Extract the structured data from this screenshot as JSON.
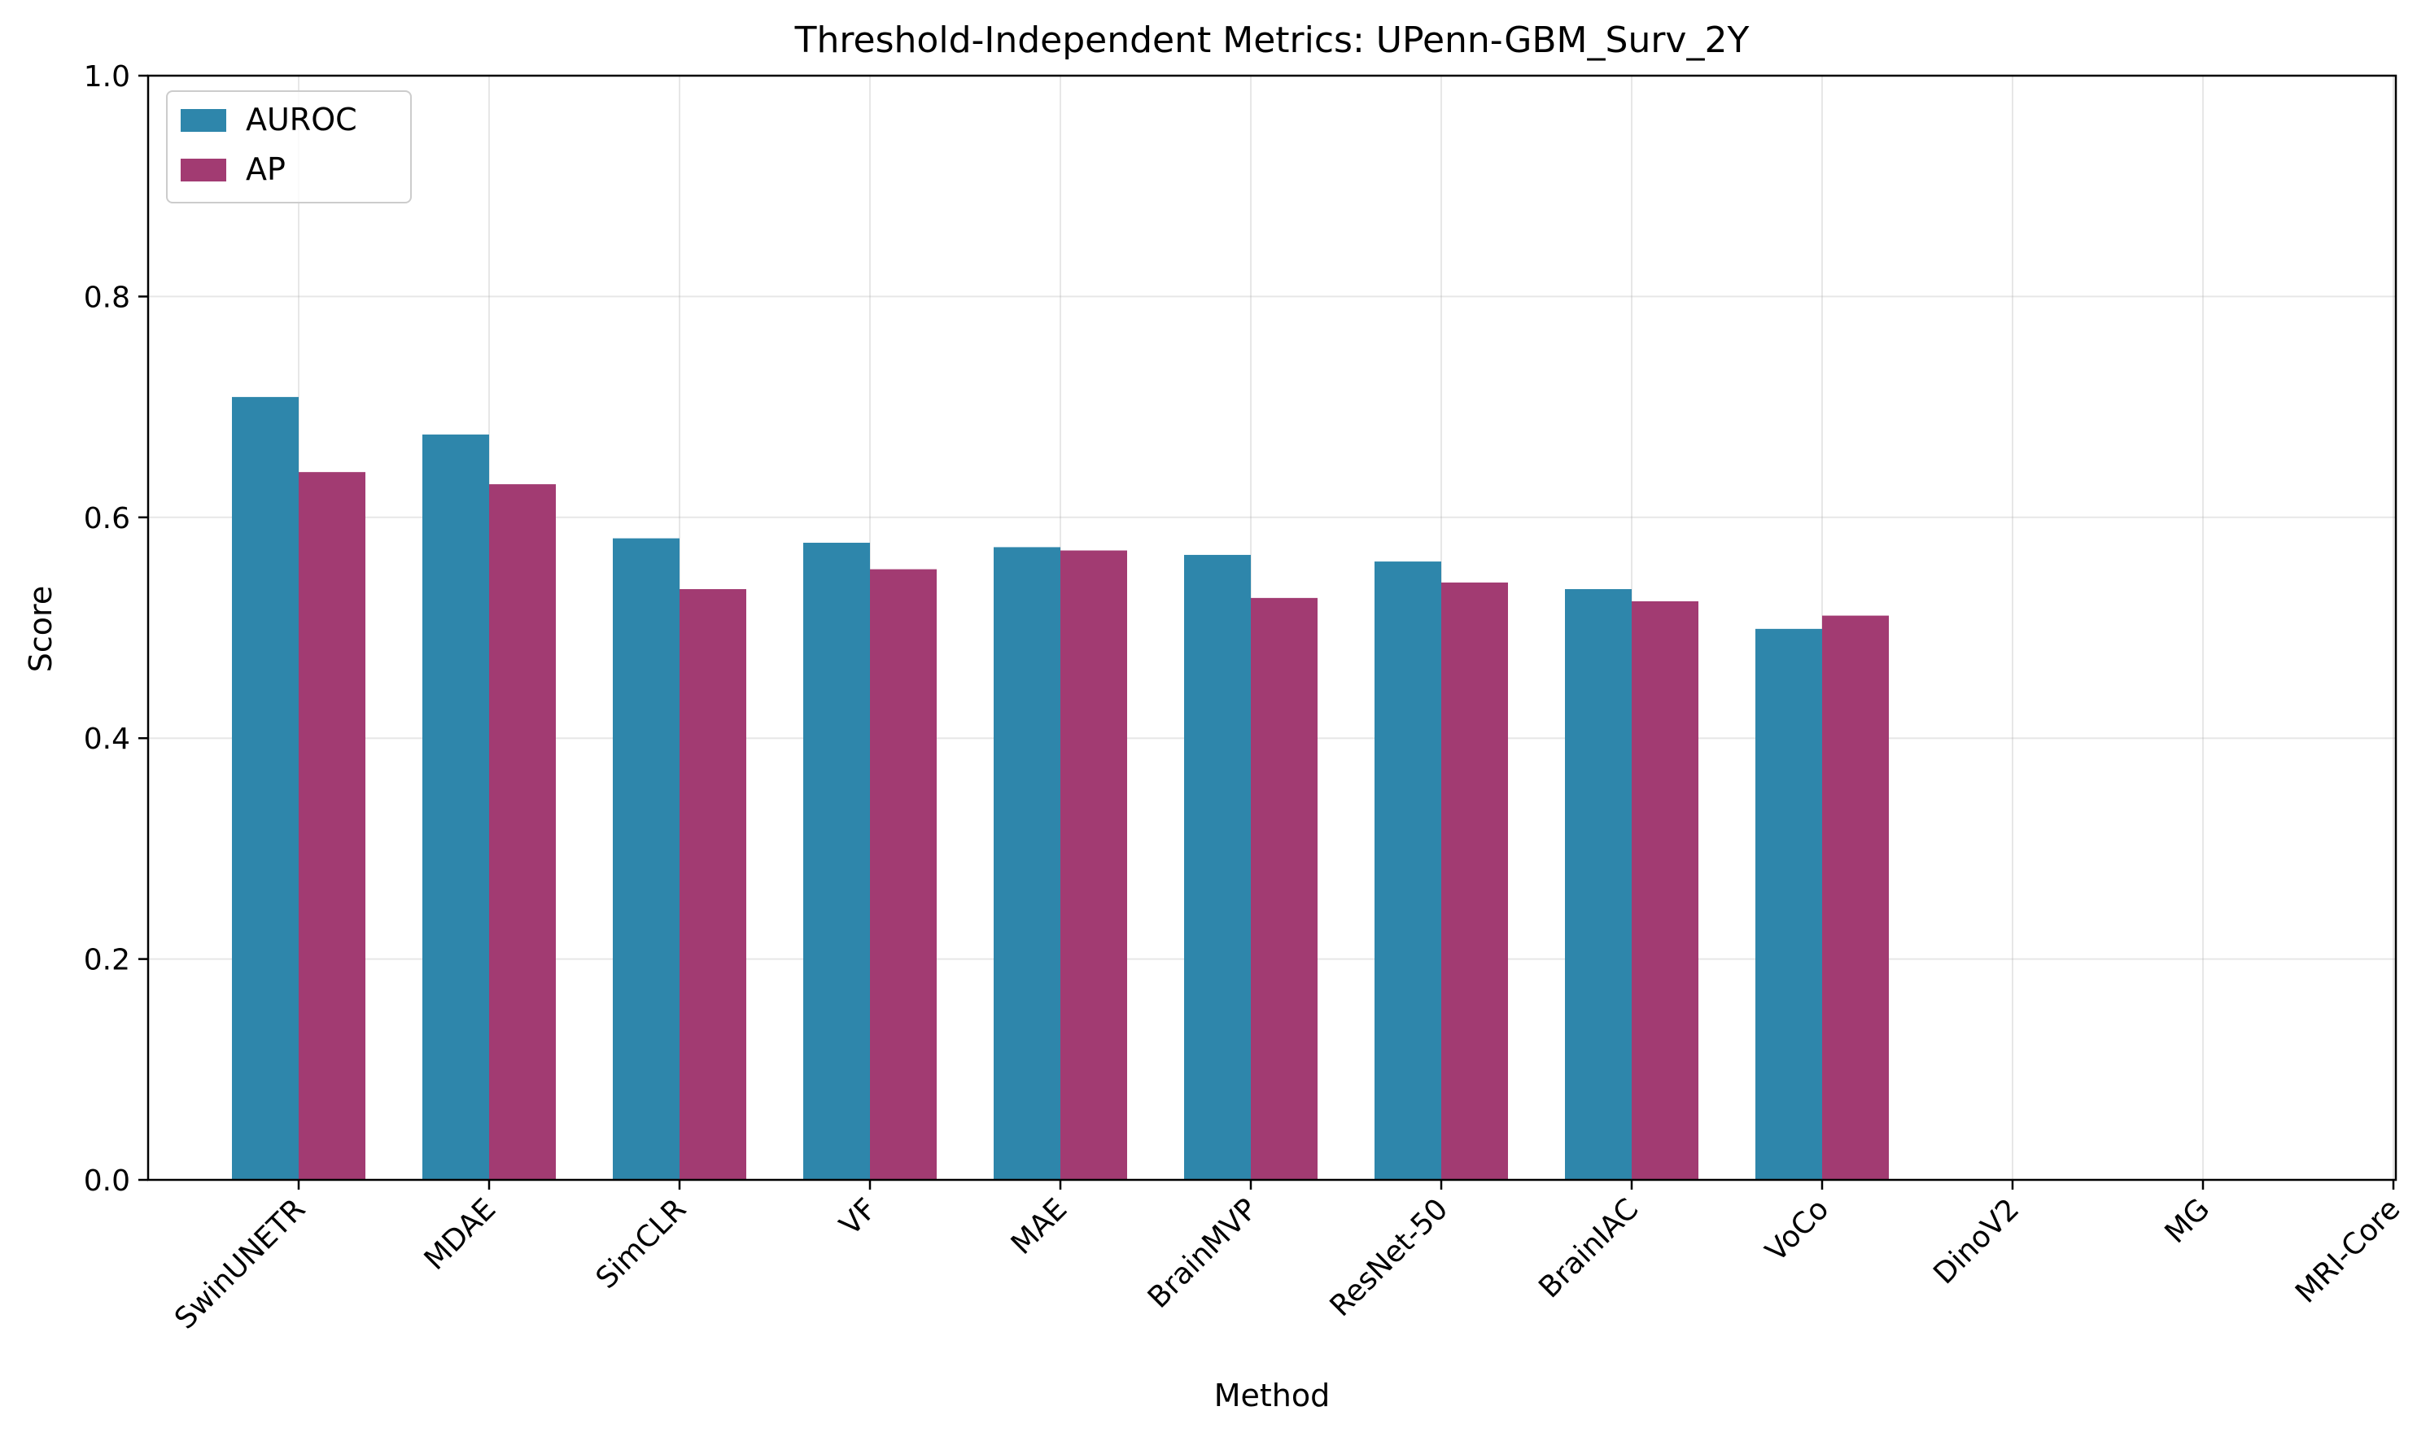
{
  "chart_data": {
    "type": "bar",
    "title": "Threshold-Independent Metrics: UPenn-GBM_Surv_2Y",
    "xlabel": "Method",
    "ylabel": "Score",
    "ylim": [
      0,
      1.0
    ],
    "yticks": [
      0.0,
      0.2,
      0.4,
      0.6,
      0.8,
      1.0
    ],
    "ytick_labels": [
      "0.0",
      "0.2",
      "0.4",
      "0.6",
      "0.8",
      "1.0"
    ],
    "grid": true,
    "legend_position": "top-left",
    "categories": [
      "SwinUNETR",
      "MDAE",
      "SimCLR",
      "VF",
      "MAE",
      "BrainMVP",
      "ResNet-50",
      "BrainIAC",
      "VoCo",
      "DinoV2",
      "MG",
      "MRI-Core"
    ],
    "series": [
      {
        "name": "AUROC",
        "color": "#2e86ab",
        "values": [
          0.709,
          0.675,
          0.581,
          0.577,
          0.573,
          0.566,
          0.56,
          0.535,
          0.499,
          null,
          null,
          null
        ]
      },
      {
        "name": "AP",
        "color": "#a23b72",
        "values": [
          0.641,
          0.63,
          0.535,
          0.553,
          0.57,
          0.527,
          0.541,
          0.524,
          0.511,
          null,
          null,
          null
        ]
      }
    ]
  }
}
